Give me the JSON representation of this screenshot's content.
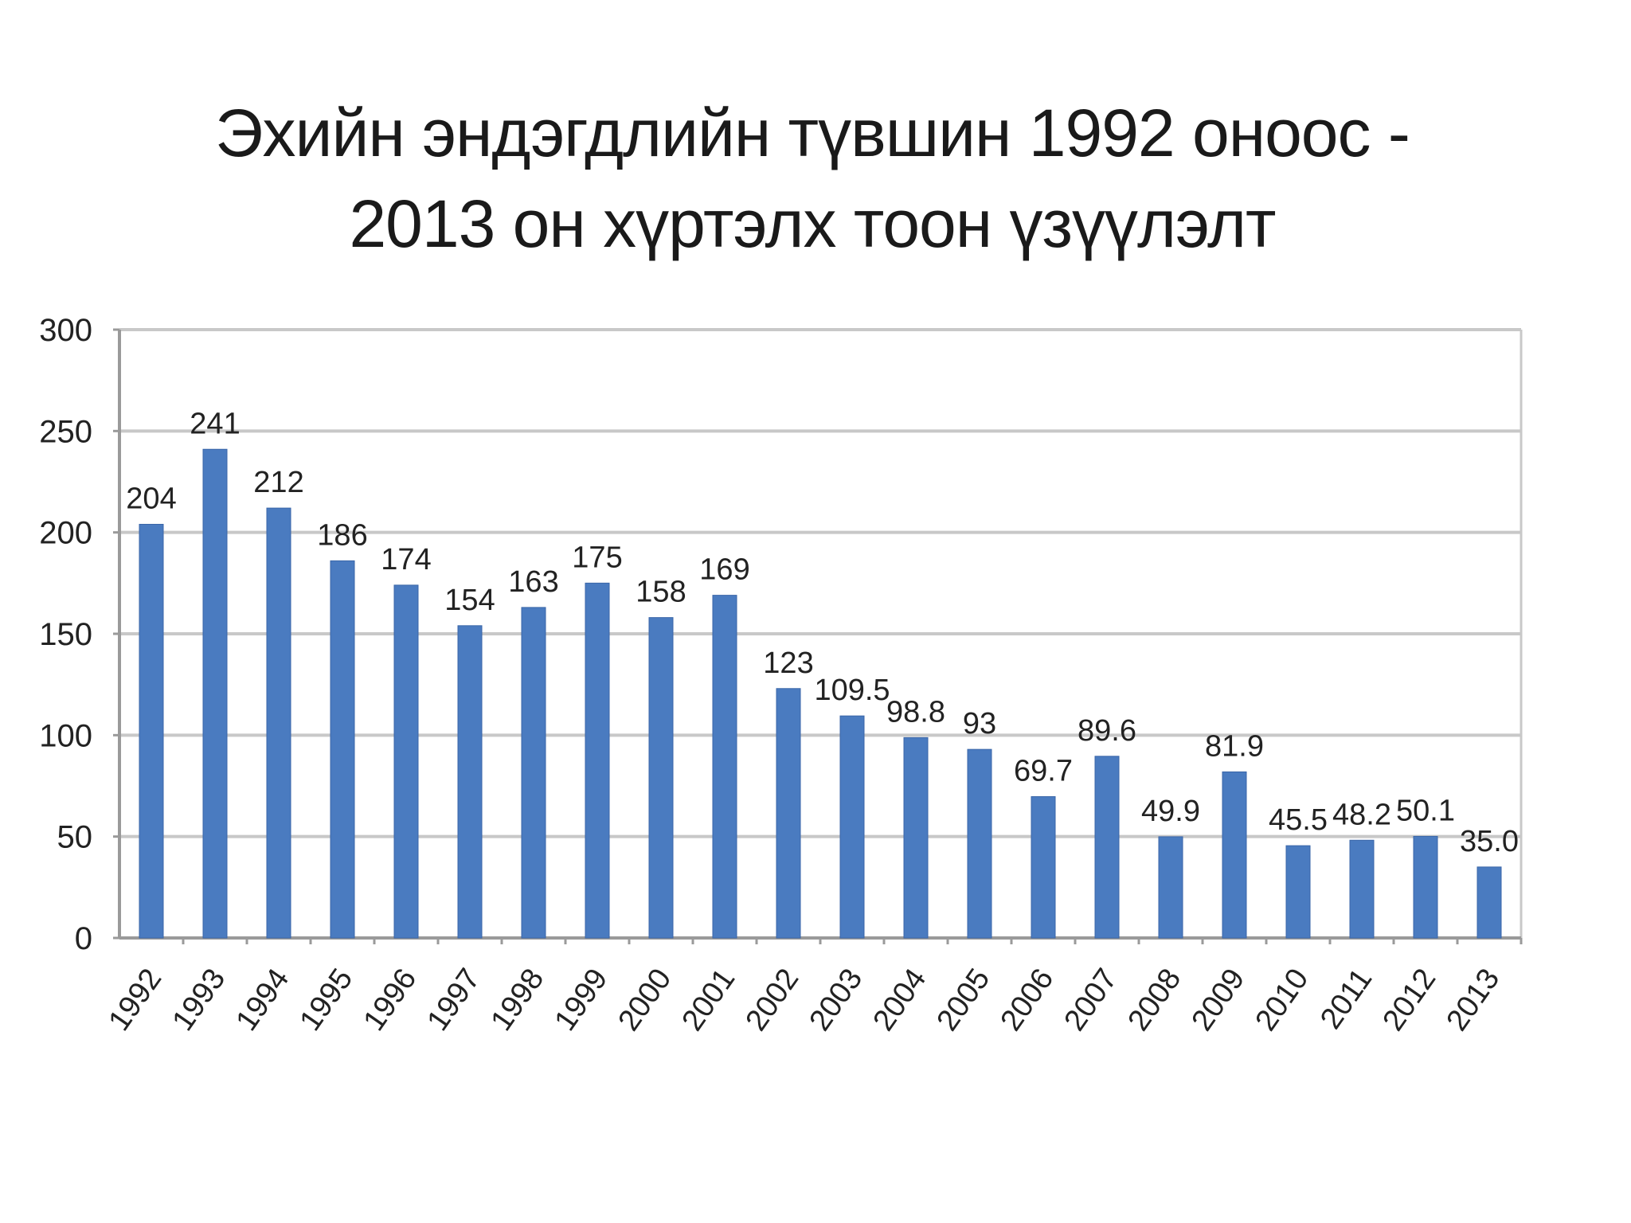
{
  "chart_data": {
    "type": "bar",
    "title_lines": [
      "Эхийн эндэгдлийн түвшин 1992 оноос -",
      "2013 он хүртэлх тоон үзүүлэлт"
    ],
    "categories": [
      "1992",
      "1993",
      "1994",
      "1995",
      "1996",
      "1997",
      "1998",
      "1999",
      "2000",
      "2001",
      "2002",
      "2003",
      "2004",
      "2005",
      "2006",
      "2007",
      "2008",
      "2009",
      "2010",
      "2011",
      "2012",
      "2013"
    ],
    "values": [
      204,
      241,
      212,
      186,
      174,
      154,
      163,
      175,
      158,
      169,
      123,
      109.5,
      98.8,
      93,
      69.7,
      89.6,
      49.9,
      81.9,
      45.5,
      48.2,
      50.1,
      35.0
    ],
    "data_labels": [
      "204",
      "241",
      "212",
      "186",
      "174",
      "154",
      "163",
      "175",
      "158",
      "169",
      "123",
      "109.5",
      "98.8",
      "93",
      "69.7",
      "89.6",
      "49.9",
      "81.9",
      "45.5",
      "48.2",
      "50.1",
      "35.0"
    ],
    "y_ticks": [
      "0",
      "50",
      "100",
      "150",
      "200",
      "250",
      "300"
    ],
    "ylim": [
      0,
      300
    ],
    "grid": true,
    "legend": false,
    "bar_color": "#4a7bc0",
    "bar_edge_color": "#3a66a8",
    "grid_color": "#c8c8c8",
    "axis_color": "#9a9a9a"
  }
}
